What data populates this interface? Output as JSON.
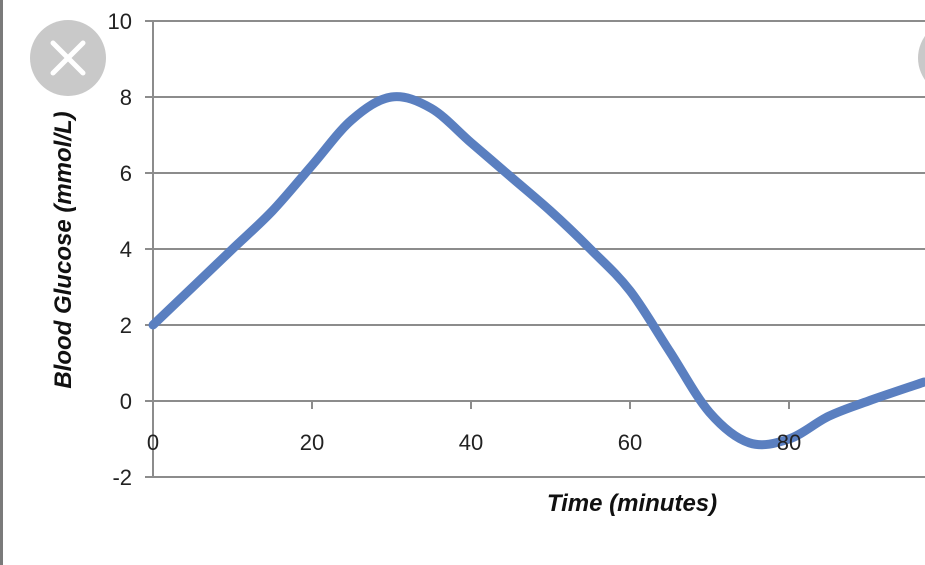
{
  "colors": {
    "series": "#5a7fc0",
    "grid": "#8c8c8c",
    "close_button": "#c9c9c9",
    "close_icon": "#ffffff"
  },
  "icons": {
    "close": "close-icon",
    "next": "partial-circle-button"
  },
  "chart_data": {
    "type": "line",
    "xlabel": "Time (minutes)",
    "ylabel": "Blood Glucose (mmol/L)",
    "xlim": [
      0,
      97
    ],
    "ylim": [
      -2,
      10
    ],
    "x_ticks": [
      0,
      20,
      40,
      60,
      80
    ],
    "x_tick_labels": [
      "0",
      "20",
      "40",
      "60",
      "80"
    ],
    "y_ticks": [
      -2,
      0,
      2,
      4,
      6,
      8,
      10
    ],
    "y_tick_labels": [
      "-2",
      "0",
      "2",
      "4",
      "6",
      "8",
      "10"
    ],
    "grid": true,
    "legend": "none",
    "series": [
      {
        "x": [
          0,
          5,
          10,
          15,
          20,
          25,
          30,
          35,
          40,
          45,
          50,
          55,
          60,
          65,
          70,
          75,
          80,
          85,
          90,
          97
        ],
        "values": [
          2.0,
          3.0,
          4.0,
          5.0,
          6.2,
          7.4,
          8.0,
          7.7,
          6.8,
          5.9,
          5.0,
          4.0,
          2.9,
          1.3,
          -0.3,
          -1.1,
          -1.0,
          -0.4,
          0.0,
          0.5
        ]
      }
    ]
  }
}
